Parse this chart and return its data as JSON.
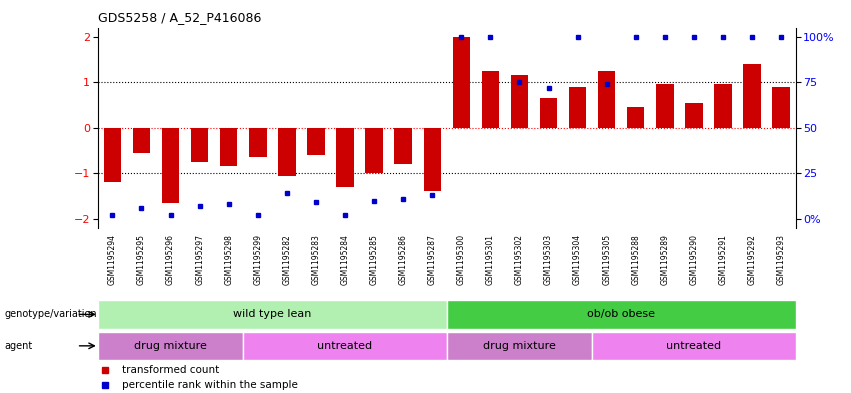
{
  "title": "GDS5258 / A_52_P416086",
  "samples": [
    "GSM1195294",
    "GSM1195295",
    "GSM1195296",
    "GSM1195297",
    "GSM1195298",
    "GSM1195299",
    "GSM1195282",
    "GSM1195283",
    "GSM1195284",
    "GSM1195285",
    "GSM1195286",
    "GSM1195287",
    "GSM1195300",
    "GSM1195301",
    "GSM1195302",
    "GSM1195303",
    "GSM1195304",
    "GSM1195305",
    "GSM1195288",
    "GSM1195289",
    "GSM1195290",
    "GSM1195291",
    "GSM1195292",
    "GSM1195293"
  ],
  "bar_values": [
    -1.2,
    -0.55,
    -1.65,
    -0.75,
    -0.85,
    -0.65,
    -1.05,
    -0.6,
    -1.3,
    -1.0,
    -0.8,
    -1.4,
    2.0,
    1.25,
    1.15,
    0.65,
    0.9,
    1.25,
    0.45,
    0.95,
    0.55,
    0.95,
    1.4,
    0.9
  ],
  "percentile_display": [
    2,
    6,
    2,
    7,
    8,
    2,
    14,
    9,
    2,
    10,
    11,
    13,
    100,
    100,
    75,
    72,
    100,
    74,
    100,
    100,
    100,
    100,
    100,
    100
  ],
  "bar_color": "#cc0000",
  "percentile_color": "#0000cc",
  "ylim": [
    -2.2,
    2.2
  ],
  "yticks_left": [
    -2,
    -1,
    0,
    1,
    2
  ],
  "dotted_lines_black": [
    -1,
    1
  ],
  "dotted_line_red": 0,
  "genotype_groups": [
    {
      "label": "wild type lean",
      "start": 0,
      "end": 12,
      "color": "#b2f0b2"
    },
    {
      "label": "ob/ob obese",
      "start": 12,
      "end": 24,
      "color": "#44cc44"
    }
  ],
  "agent_groups": [
    {
      "label": "drug mixture",
      "start": 0,
      "end": 5,
      "color": "#cc80cc"
    },
    {
      "label": "untreated",
      "start": 5,
      "end": 12,
      "color": "#ee82ee"
    },
    {
      "label": "drug mixture",
      "start": 12,
      "end": 17,
      "color": "#cc80cc"
    },
    {
      "label": "untreated",
      "start": 17,
      "end": 24,
      "color": "#ee82ee"
    }
  ],
  "legend_items": [
    {
      "label": "transformed count",
      "color": "#cc0000"
    },
    {
      "label": "percentile rank within the sample",
      "color": "#0000cc"
    }
  ],
  "background_color": "#ffffff"
}
